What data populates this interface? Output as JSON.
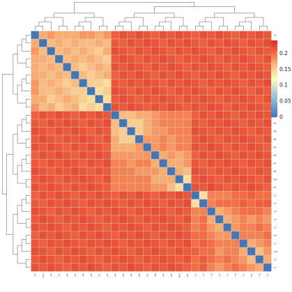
{
  "chart_data": {
    "type": "heatmap",
    "title": "",
    "xlabel": "",
    "ylabel": "",
    "labels": [
      "A3",
      "A10",
      "A9",
      "A7",
      "A6",
      "A5",
      "A8",
      "A4",
      "A1",
      "A2",
      "B4",
      "B3",
      "B9",
      "B6",
      "B5",
      "B8",
      "B7",
      "B2",
      "B10",
      "B1",
      "C2",
      "C3",
      "C8",
      "C4",
      "C5",
      "C6",
      "C1",
      "C10",
      "C9",
      "C7"
    ],
    "clusters": [
      {
        "name": "A",
        "start": 0,
        "end": 9
      },
      {
        "name": "B",
        "start": 10,
        "end": 19
      },
      {
        "name": "C",
        "start": 20,
        "end": 29
      }
    ],
    "value_range": [
      0,
      0.24
    ],
    "between_cluster_value": 0.215,
    "within_A": [
      [
        0.0,
        0.17,
        0.18,
        0.17,
        0.17,
        0.17,
        0.18,
        0.18,
        0.17,
        0.18
      ],
      [
        0.17,
        0.0,
        0.16,
        0.17,
        0.16,
        0.17,
        0.16,
        0.16,
        0.17,
        0.16
      ],
      [
        0.18,
        0.16,
        0.0,
        0.16,
        0.17,
        0.16,
        0.17,
        0.16,
        0.15,
        0.17
      ],
      [
        0.17,
        0.17,
        0.16,
        0.0,
        0.16,
        0.17,
        0.16,
        0.17,
        0.16,
        0.15
      ],
      [
        0.17,
        0.16,
        0.17,
        0.16,
        0.0,
        0.16,
        0.15,
        0.16,
        0.17,
        0.16
      ],
      [
        0.17,
        0.17,
        0.16,
        0.17,
        0.16,
        0.0,
        0.16,
        0.15,
        0.16,
        0.17
      ],
      [
        0.18,
        0.16,
        0.17,
        0.16,
        0.15,
        0.16,
        0.0,
        0.15,
        0.15,
        0.14
      ],
      [
        0.18,
        0.16,
        0.16,
        0.17,
        0.16,
        0.15,
        0.15,
        0.0,
        0.14,
        0.15
      ],
      [
        0.17,
        0.17,
        0.15,
        0.16,
        0.17,
        0.16,
        0.15,
        0.14,
        0.0,
        0.14
      ],
      [
        0.18,
        0.16,
        0.17,
        0.15,
        0.16,
        0.17,
        0.14,
        0.15,
        0.14,
        0.0
      ]
    ],
    "within_B": [
      [
        0.0,
        0.16,
        0.16,
        0.17,
        0.17,
        0.18,
        0.19,
        0.19,
        0.19,
        0.19
      ],
      [
        0.16,
        0.0,
        0.15,
        0.15,
        0.17,
        0.18,
        0.19,
        0.19,
        0.19,
        0.19
      ],
      [
        0.16,
        0.15,
        0.0,
        0.15,
        0.17,
        0.18,
        0.18,
        0.19,
        0.19,
        0.19
      ],
      [
        0.17,
        0.15,
        0.15,
        0.0,
        0.18,
        0.18,
        0.19,
        0.18,
        0.19,
        0.19
      ],
      [
        0.17,
        0.17,
        0.17,
        0.18,
        0.0,
        0.18,
        0.19,
        0.18,
        0.19,
        0.19
      ],
      [
        0.18,
        0.18,
        0.18,
        0.18,
        0.18,
        0.0,
        0.17,
        0.18,
        0.17,
        0.18
      ],
      [
        0.19,
        0.19,
        0.18,
        0.19,
        0.19,
        0.17,
        0.0,
        0.17,
        0.17,
        0.18
      ],
      [
        0.19,
        0.19,
        0.19,
        0.18,
        0.18,
        0.18,
        0.17,
        0.0,
        0.17,
        0.16
      ],
      [
        0.19,
        0.19,
        0.19,
        0.19,
        0.19,
        0.17,
        0.17,
        0.17,
        0.0,
        0.14
      ],
      [
        0.19,
        0.19,
        0.19,
        0.19,
        0.19,
        0.18,
        0.18,
        0.16,
        0.14,
        0.0
      ]
    ],
    "within_C": [
      [
        0.0,
        0.14,
        0.19,
        0.19,
        0.19,
        0.2,
        0.2,
        0.21,
        0.2,
        0.2
      ],
      [
        0.14,
        0.0,
        0.19,
        0.2,
        0.2,
        0.2,
        0.21,
        0.2,
        0.21,
        0.21
      ],
      [
        0.19,
        0.19,
        0.0,
        0.17,
        0.18,
        0.19,
        0.2,
        0.2,
        0.2,
        0.19
      ],
      [
        0.19,
        0.2,
        0.17,
        0.0,
        0.17,
        0.18,
        0.19,
        0.18,
        0.19,
        0.18
      ],
      [
        0.19,
        0.2,
        0.18,
        0.17,
        0.0,
        0.18,
        0.19,
        0.19,
        0.2,
        0.19
      ],
      [
        0.2,
        0.2,
        0.19,
        0.18,
        0.18,
        0.0,
        0.19,
        0.19,
        0.19,
        0.2
      ],
      [
        0.2,
        0.21,
        0.2,
        0.19,
        0.19,
        0.19,
        0.0,
        0.17,
        0.18,
        0.19
      ],
      [
        0.21,
        0.2,
        0.2,
        0.18,
        0.19,
        0.19,
        0.17,
        0.0,
        0.16,
        0.18
      ],
      [
        0.2,
        0.21,
        0.2,
        0.19,
        0.2,
        0.19,
        0.18,
        0.16,
        0.0,
        0.17
      ],
      [
        0.2,
        0.21,
        0.19,
        0.18,
        0.19,
        0.2,
        0.19,
        0.18,
        0.17,
        0.0
      ]
    ],
    "legend": {
      "ticks": [
        0.2,
        0.15,
        0.1,
        0.05,
        0
      ],
      "tick_labels": [
        "0.2",
        "0.15",
        "0.1",
        "0.05",
        "0"
      ],
      "placement": "top-right"
    },
    "color_scale": {
      "stops": [
        {
          "value": 0.0,
          "color": "#4575b4"
        },
        {
          "value": 0.06,
          "color": "#91bfdb"
        },
        {
          "value": 0.12,
          "color": "#fefebd"
        },
        {
          "value": 0.17,
          "color": "#f8ad72"
        },
        {
          "value": 0.2,
          "color": "#f46d43"
        },
        {
          "value": 0.24,
          "color": "#d73027"
        }
      ]
    },
    "dendrogram": true
  }
}
